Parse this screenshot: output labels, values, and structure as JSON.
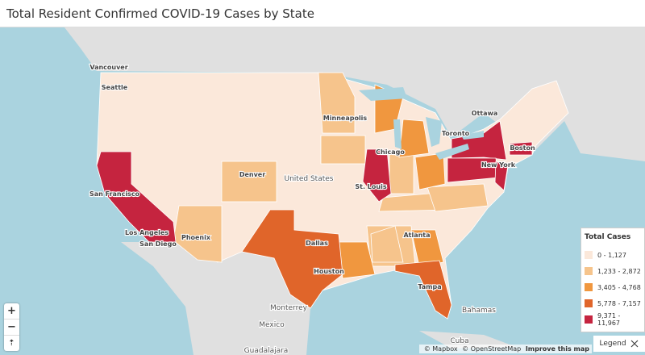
{
  "header": {
    "title": "Total Resident Confirmed COVID-19 Cases by State"
  },
  "map": {
    "places": [
      "Vancouver",
      "Seattle",
      "Ottawa",
      "Toronto",
      "Minneapolis",
      "Chicago",
      "Boston",
      "New York",
      "Denver",
      "United States",
      "St. Louis",
      "San Francisco",
      "Los Angeles",
      "San Diego",
      "Phoenix",
      "Dallas",
      "Atlanta",
      "Houston",
      "Tampa",
      "Monterrey",
      "Mexico",
      "Bahamas",
      "Cuba",
      "Guadalajara"
    ],
    "legend": {
      "title": "Total Cases",
      "bins": [
        {
          "label": "0 - 1,127",
          "color": "#fbe8da"
        },
        {
          "label": "1,233 - 2,872",
          "color": "#f6c48c"
        },
        {
          "label": "3,405 - 4,768",
          "color": "#f0973f"
        },
        {
          "label": "5,778 - 7,157",
          "color": "#e0652a"
        },
        {
          "label": "9,371 - 11,967",
          "color": "#c5243f"
        }
      ]
    },
    "legend_toggle": "Legend",
    "controls": {
      "zoom_in": "+",
      "zoom_out": "−",
      "compass": "⇡"
    },
    "attribution": [
      "© Mapbox",
      "© OpenStreetMap",
      "Improve this map"
    ]
  }
}
